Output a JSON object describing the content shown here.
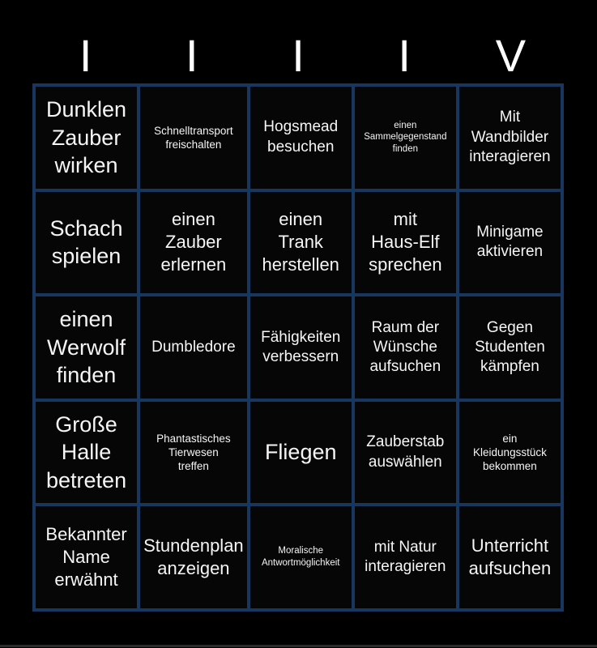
{
  "header": {
    "letters": [
      "I",
      "I",
      "I",
      "I",
      "V"
    ]
  },
  "grid": {
    "rows": 5,
    "cols": 5,
    "cells": [
      {
        "text": "Dunklen\nZauber\nwirken",
        "size": "xl"
      },
      {
        "text": "Schnelltransport\nfreischalten",
        "size": "sm"
      },
      {
        "text": "Hogsmead\nbesuchen",
        "size": "md"
      },
      {
        "text": "einen\nSammelgegenstand\nfinden",
        "size": "xs"
      },
      {
        "text": "Mit\nWandbilder\ninteragieren",
        "size": "md"
      },
      {
        "text": "Schach\nspielen",
        "size": "xl"
      },
      {
        "text": "einen\nZauber\nerlernen",
        "size": "lg"
      },
      {
        "text": "einen\nTrank\nherstellen",
        "size": "lg"
      },
      {
        "text": "mit\nHaus-Elf\nsprechen",
        "size": "lg"
      },
      {
        "text": "Minigame\naktivieren",
        "size": "md"
      },
      {
        "text": "einen\nWerwolf\nfinden",
        "size": "xl"
      },
      {
        "text": "Dumbledore",
        "size": "md"
      },
      {
        "text": "Fähigkeiten\nverbessern",
        "size": "md"
      },
      {
        "text": "Raum der\nWünsche\naufsuchen",
        "size": "md"
      },
      {
        "text": "Gegen\nStudenten\nkämpfen",
        "size": "md"
      },
      {
        "text": "Große\nHalle\nbetreten",
        "size": "xl"
      },
      {
        "text": "Phantastisches\nTierwesen\ntreffen",
        "size": "sm"
      },
      {
        "text": "Fliegen",
        "size": "xl"
      },
      {
        "text": "Zauberstab\nauswählen",
        "size": "md"
      },
      {
        "text": "ein\nKleidungsstück\nbekommen",
        "size": "sm"
      },
      {
        "text": "Bekannter\nName\nerwähnt",
        "size": "lg"
      },
      {
        "text": "Stundenplan\nanzeigen",
        "size": "lg"
      },
      {
        "text": "Moralische\nAntwortmöglichkeit",
        "size": "xs"
      },
      {
        "text": "mit Natur\ninteragieren",
        "size": "md"
      },
      {
        "text": "Unterricht\naufsuchen",
        "size": "lg"
      }
    ]
  },
  "colors": {
    "background": "#000000",
    "cell_background": "#060606",
    "grid_line": "#17375E",
    "text": "#ffffff",
    "footer_strip": "#2b2b2b"
  }
}
